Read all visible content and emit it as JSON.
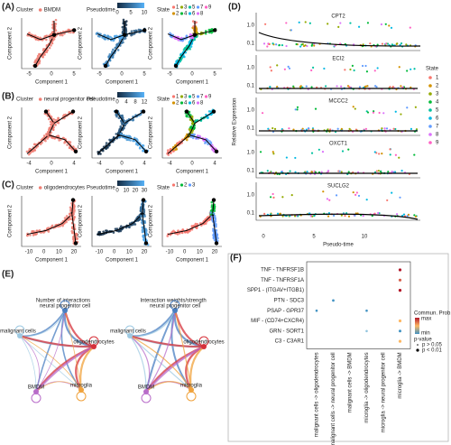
{
  "panels": [
    {
      "label": "(A)",
      "plots": [
        {
          "legend_title": "Cluster",
          "legend_items": [
            "BMDM"
          ],
          "xlabel": "Component 1",
          "ylabel": "Component 2",
          "xticks": [
            "-5",
            "0",
            "5"
          ]
        },
        {
          "legend_title": "Pseudotime",
          "scale_ticks": [
            "0",
            "5",
            "10"
          ],
          "xlabel": "Component 1",
          "ylabel": "Component 2",
          "xticks": [
            "-5",
            "0",
            "5"
          ]
        },
        {
          "legend_title": "State",
          "legend_items": [
            "1",
            "3",
            "5",
            "7",
            "9",
            "2",
            "4",
            "6",
            "8"
          ],
          "xlabel": "Component 1",
          "ylabel": "Component 2",
          "xticks": [
            "-5",
            "0",
            "5"
          ]
        }
      ]
    },
    {
      "label": "(B)",
      "plots": [
        {
          "legend_title": "Cluster",
          "legend_items": [
            "neural progenitor cell"
          ],
          "xlabel": "Component 1",
          "ylabel": "Component 2",
          "xticks": [
            "-4",
            "0",
            "4"
          ]
        },
        {
          "legend_title": "Pseudotime",
          "scale_ticks": [
            "0",
            "4",
            "8",
            "12"
          ],
          "xlabel": "Component 1",
          "ylabel": "Component 2",
          "xticks": [
            "-4",
            "0",
            "4"
          ]
        },
        {
          "legend_title": "State",
          "legend_items": [
            "1",
            "3",
            "5",
            "7",
            "9",
            "2",
            "4",
            "6",
            "8"
          ],
          "xlabel": "Component 1",
          "ylabel": "Component 2",
          "xticks": [
            "-4",
            "0",
            "4"
          ]
        }
      ]
    },
    {
      "label": "(C)",
      "plots": [
        {
          "legend_title": "Cluster",
          "legend_items": [
            "oligodendrocytes"
          ],
          "xlabel": "Component 1",
          "ylabel": "Component 2",
          "xticks": [
            "-10",
            "0",
            "10",
            "20"
          ]
        },
        {
          "legend_title": "Pseudotime",
          "scale_ticks": [
            "0",
            "10",
            "20",
            "30"
          ],
          "xlabel": "Component 1",
          "ylabel": "Component 2",
          "xticks": [
            "-10",
            "0",
            "10",
            "20"
          ]
        },
        {
          "legend_title": "State",
          "legend_items": [
            "1",
            "2",
            "3"
          ],
          "xlabel": "Component 1",
          "ylabel": "Component 2",
          "xticks": [
            "-10",
            "0",
            "10",
            "20"
          ]
        }
      ]
    }
  ],
  "panel_d": {
    "label": "(D)",
    "genes": [
      "CPT2",
      "ECI2",
      "MCCC2",
      "OXCT1",
      "SUCLG2"
    ],
    "yticks": [
      "1.0",
      "0.1"
    ],
    "xticks": [
      "0",
      "5",
      "10"
    ],
    "xlabel": "Pseudo-time",
    "ylabel": "Relative Expression",
    "legend_title": "State",
    "legend_items": [
      "1",
      "2",
      "3",
      "4",
      "5",
      "6",
      "7",
      "8",
      "9"
    ]
  },
  "panel_e": {
    "label": "(E)",
    "titles": [
      "Number of interactions",
      "Interaction weights/strength"
    ],
    "nodes": [
      "neural progenitor cell",
      "malignant cells",
      "oligodendrocytes",
      "BMDM",
      "microglia"
    ]
  },
  "panel_f": {
    "label": "(F)",
    "rows": [
      "TNF - TNFRSF1B",
      "TNF - TNFRSF1A",
      "SPP1 - (ITGAV+ITGB1)",
      "PTN - SDC3",
      "PSAP - GPR37",
      "MIF - (CD74+CXCR4)",
      "GRN - SORT1",
      "C3 - C3AR1"
    ],
    "columns": [
      "malignant cells -> oligodendrocytes",
      "malignant cells -> neural progenitor cell",
      "malignant cells -> BMDM",
      "microglia -> oligodendrocytes",
      "microglia -> neural progenitor cell",
      "microglia -> BMDM"
    ],
    "legend_title": "Commun. Prob.",
    "scale_labels": [
      "max",
      "min"
    ],
    "pvalue_title": "p-value",
    "pvalue_items": [
      "p > 0.05",
      "p < 0.01"
    ]
  }
}
